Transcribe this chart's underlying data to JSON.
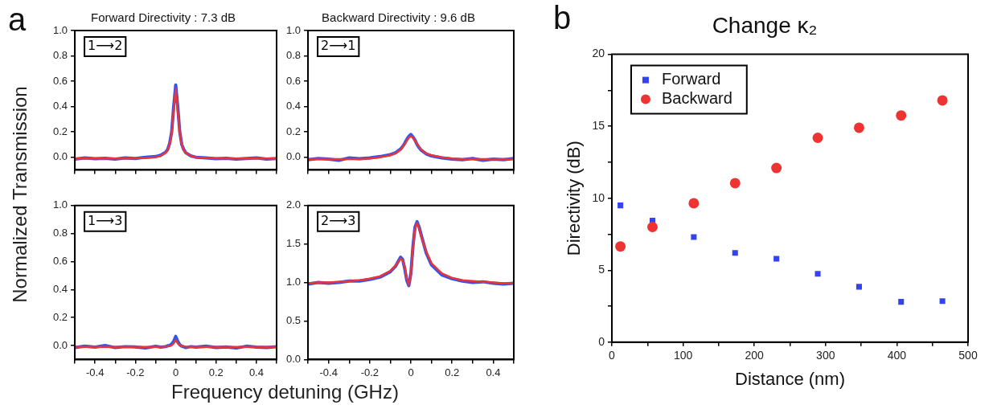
{
  "chart_data": [
    {
      "type": "line",
      "title": "Forward Directivity : 7.3 dB",
      "ylabel": "Normalized Transmission",
      "annotations": [
        "a",
        "1⟶2"
      ],
      "marker": "none",
      "tick_labels": "y",
      "x": [
        -0.5,
        -0.45,
        -0.4,
        -0.35,
        -0.3,
        -0.25,
        -0.2,
        -0.15,
        -0.1,
        -0.075,
        -0.05,
        -0.04,
        -0.03,
        -0.02,
        -0.01,
        0,
        0.01,
        0.02,
        0.03,
        0.04,
        0.05,
        0.075,
        0.1,
        0.15,
        0.2,
        0.25,
        0.3,
        0.35,
        0.4,
        0.45,
        0.5
      ],
      "xlim": [
        -0.5,
        0.5
      ],
      "xticks": [
        {
          "value": -0.5,
          "label": null
        },
        -0.4,
        {
          "value": -0.3,
          "label": null
        },
        -0.2,
        {
          "value": -0.1,
          "label": null
        },
        0,
        {
          "value": 0.1,
          "label": null
        },
        0.2,
        {
          "value": 0.3,
          "label": null
        },
        0.4,
        {
          "value": 0.5,
          "label": null
        }
      ],
      "ylim": [
        -0.1,
        1.0
      ],
      "yticks": [
        {
          "value": 0,
          "label": "0.0"
        },
        0.2,
        0.4,
        0.6,
        0.8,
        {
          "value": 1,
          "label": "1.0"
        }
      ],
      "series": [
        {
          "color": "#3355ee",
          "values": [
            -0.015,
            -0.005,
            -0.012,
            -0.008,
            -0.015,
            -0.005,
            -0.01,
            0.0,
            0.005,
            0.015,
            0.04,
            0.06,
            0.11,
            0.2,
            0.4,
            0.57,
            0.4,
            0.2,
            0.1,
            0.06,
            0.035,
            0.01,
            0.0,
            -0.005,
            -0.012,
            -0.008,
            -0.015,
            -0.01,
            -0.005,
            -0.015,
            -0.01
          ]
        },
        {
          "color": "#ee3333",
          "values": [
            -0.01,
            -0.01,
            -0.01,
            -0.01,
            -0.01,
            -0.01,
            -0.008,
            -0.005,
            0.0,
            0.01,
            0.035,
            0.055,
            0.1,
            0.19,
            0.37,
            0.54,
            0.37,
            0.19,
            0.1,
            0.055,
            0.035,
            0.01,
            0.0,
            -0.005,
            -0.008,
            -0.01,
            -0.01,
            -0.01,
            -0.01,
            -0.01,
            -0.01
          ]
        }
      ]
    },
    {
      "type": "line",
      "title": "Backward Directivity : 9.6 dB",
      "annotations": [
        "2⟶1"
      ],
      "marker": "none",
      "tick_labels": "y",
      "x": [
        -0.5,
        -0.45,
        -0.4,
        -0.35,
        -0.3,
        -0.25,
        -0.2,
        -0.15,
        -0.1,
        -0.075,
        -0.05,
        -0.04,
        -0.03,
        -0.02,
        -0.01,
        0,
        0.01,
        0.02,
        0.03,
        0.04,
        0.05,
        0.075,
        0.1,
        0.15,
        0.2,
        0.25,
        0.3,
        0.35,
        0.4,
        0.45,
        0.5
      ],
      "xlim": [
        -0.5,
        0.5
      ],
      "xticks": [
        {
          "value": -0.5,
          "label": null
        },
        -0.4,
        {
          "value": -0.3,
          "label": null
        },
        -0.2,
        {
          "value": -0.1,
          "label": null
        },
        0,
        {
          "value": 0.1,
          "label": null
        },
        0.2,
        {
          "value": 0.3,
          "label": null
        },
        0.4,
        {
          "value": 0.5,
          "label": null
        }
      ],
      "ylim": [
        -0.1,
        1.0
      ],
      "yticks": [
        {
          "value": 0,
          "label": "0.0"
        },
        0.2,
        0.4,
        0.6,
        0.8,
        {
          "value": 1,
          "label": "1.0"
        }
      ],
      "series": [
        {
          "color": "#3355ee",
          "values": [
            -0.02,
            -0.01,
            -0.015,
            -0.025,
            -0.005,
            -0.012,
            -0.005,
            0.005,
            0.02,
            0.035,
            0.065,
            0.085,
            0.11,
            0.14,
            0.165,
            0.18,
            0.16,
            0.135,
            0.1,
            0.075,
            0.055,
            0.025,
            0.01,
            -0.005,
            -0.015,
            -0.02,
            -0.01,
            -0.025,
            -0.015,
            -0.02,
            -0.01
          ]
        },
        {
          "color": "#ee3333",
          "values": [
            -0.015,
            -0.015,
            -0.015,
            -0.015,
            -0.015,
            -0.015,
            -0.01,
            0.0,
            0.015,
            0.03,
            0.06,
            0.08,
            0.105,
            0.13,
            0.155,
            0.165,
            0.155,
            0.13,
            0.105,
            0.08,
            0.06,
            0.03,
            0.015,
            0.0,
            -0.01,
            -0.015,
            -0.015,
            -0.015,
            -0.015,
            -0.015,
            -0.015
          ]
        }
      ]
    },
    {
      "type": "line",
      "xlabel": "Frequency detuning (GHz)",
      "annotations": [
        "1⟶3"
      ],
      "marker": "none",
      "x": [
        -0.5,
        -0.45,
        -0.4,
        -0.35,
        -0.3,
        -0.25,
        -0.2,
        -0.15,
        -0.1,
        -0.075,
        -0.05,
        -0.04,
        -0.03,
        -0.02,
        -0.01,
        0,
        0.01,
        0.02,
        0.03,
        0.04,
        0.05,
        0.075,
        0.1,
        0.15,
        0.2,
        0.25,
        0.3,
        0.35,
        0.4,
        0.45,
        0.5
      ],
      "xlim": [
        -0.5,
        0.5
      ],
      "xticks": [
        {
          "value": -0.5,
          "label": null
        },
        -0.4,
        {
          "value": -0.3,
          "label": null
        },
        -0.2,
        {
          "value": -0.1,
          "label": null
        },
        0,
        {
          "value": 0.1,
          "label": null
        },
        0.2,
        {
          "value": 0.3,
          "label": null
        },
        0.4,
        {
          "value": 0.5,
          "label": null
        }
      ],
      "ylim": [
        -0.1,
        1.0
      ],
      "yticks": [
        {
          "value": 0,
          "label": "0.0"
        },
        0.2,
        0.4,
        0.6,
        0.8,
        {
          "value": 1,
          "label": "1.0"
        }
      ],
      "series": [
        {
          "color": "#3355ee",
          "values": [
            -0.015,
            -0.005,
            -0.012,
            0.0,
            -0.015,
            -0.008,
            -0.01,
            -0.018,
            -0.005,
            -0.012,
            -0.008,
            -0.002,
            0.0,
            0.01,
            0.03,
            0.065,
            0.03,
            0.005,
            -0.005,
            -0.01,
            -0.015,
            -0.008,
            -0.012,
            -0.005,
            -0.015,
            -0.01,
            -0.018,
            -0.005,
            -0.012,
            -0.015,
            -0.008
          ]
        },
        {
          "color": "#ee3333",
          "values": [
            -0.01,
            -0.01,
            -0.01,
            -0.01,
            -0.01,
            -0.01,
            -0.01,
            -0.01,
            -0.01,
            -0.01,
            -0.008,
            -0.006,
            -0.003,
            0.002,
            0.015,
            0.04,
            0.015,
            0.002,
            -0.003,
            -0.006,
            -0.008,
            -0.01,
            -0.01,
            -0.01,
            -0.01,
            -0.01,
            -0.01,
            -0.01,
            -0.01,
            -0.01,
            -0.01
          ]
        }
      ]
    },
    {
      "type": "line",
      "annotations": [
        "2⟶3"
      ],
      "marker": "none",
      "x": [
        -0.5,
        -0.45,
        -0.4,
        -0.35,
        -0.3,
        -0.25,
        -0.2,
        -0.15,
        -0.1,
        -0.075,
        -0.05,
        -0.04,
        -0.03,
        -0.02,
        -0.01,
        0,
        0.01,
        0.02,
        0.03,
        0.04,
        0.05,
        0.075,
        0.1,
        0.15,
        0.2,
        0.25,
        0.3,
        0.35,
        0.4,
        0.45,
        0.5
      ],
      "xlim": [
        -0.5,
        0.5
      ],
      "xticks": [
        {
          "value": -0.5,
          "label": null
        },
        -0.4,
        {
          "value": -0.3,
          "label": null
        },
        -0.2,
        {
          "value": -0.1,
          "label": null
        },
        0,
        {
          "value": 0.1,
          "label": null
        },
        0.2,
        {
          "value": 0.3,
          "label": null
        },
        0.4,
        {
          "value": 0.5,
          "label": null
        }
      ],
      "ylim": [
        0,
        2.0
      ],
      "yticks": [
        {
          "value": 0,
          "label": "0.0"
        },
        0.5,
        {
          "value": 1,
          "label": "1.0"
        },
        1.5,
        {
          "value": 2,
          "label": "2.0"
        }
      ],
      "series": [
        {
          "color": "#3355ee",
          "values": [
            0.98,
            1.0,
            0.99,
            1.0,
            1.02,
            1.02,
            1.04,
            1.07,
            1.14,
            1.21,
            1.33,
            1.3,
            1.18,
            1.03,
            0.96,
            1.12,
            1.47,
            1.72,
            1.79,
            1.72,
            1.62,
            1.38,
            1.23,
            1.1,
            1.05,
            1.02,
            1.0,
            1.01,
            0.99,
            0.98,
            0.99
          ]
        },
        {
          "color": "#ee3333",
          "values": [
            0.99,
            1.0,
            1.0,
            1.01,
            1.02,
            1.03,
            1.05,
            1.08,
            1.15,
            1.22,
            1.31,
            1.29,
            1.2,
            1.05,
            0.97,
            1.1,
            1.45,
            1.7,
            1.77,
            1.7,
            1.6,
            1.4,
            1.25,
            1.12,
            1.06,
            1.03,
            1.02,
            1.01,
            1.0,
            0.99,
            0.99
          ]
        }
      ]
    },
    {
      "type": "scatter",
      "title": "Change κ₂",
      "xlabel": "Distance (nm)",
      "ylabel": "Directivity (dB)",
      "annotations": [
        "b"
      ],
      "legend": "top left",
      "x": [
        12,
        57,
        115,
        173,
        231,
        289,
        347,
        406,
        464
      ],
      "xlim": [
        0,
        500
      ],
      "xticks": [
        0,
        {
          "value": 50,
          "label": null
        },
        100,
        {
          "value": 150,
          "label": null
        },
        200,
        {
          "value": 250,
          "label": null
        },
        300,
        {
          "value": 350,
          "label": null
        },
        400,
        {
          "value": 450,
          "label": null
        },
        500
      ],
      "ylim": [
        0,
        20
      ],
      "yticks": [
        0,
        {
          "value": 2.5,
          "label": null
        },
        5,
        {
          "value": 7.5,
          "label": null
        },
        10,
        {
          "value": 12.5,
          "label": null
        },
        15,
        {
          "value": 17.5,
          "label": null
        },
        20
      ],
      "series": [
        {
          "name": "Forward",
          "color": "#3344ee",
          "marker": "square",
          "values": [
            9.5,
            8.45,
            7.3,
            6.2,
            5.8,
            4.75,
            3.85,
            2.8,
            2.85
          ]
        },
        {
          "name": "Backward",
          "color": "#ee3333",
          "marker": "circle",
          "values": [
            6.65,
            8.0,
            9.65,
            11.05,
            12.1,
            14.2,
            14.9,
            15.75,
            16.8
          ]
        }
      ]
    }
  ]
}
